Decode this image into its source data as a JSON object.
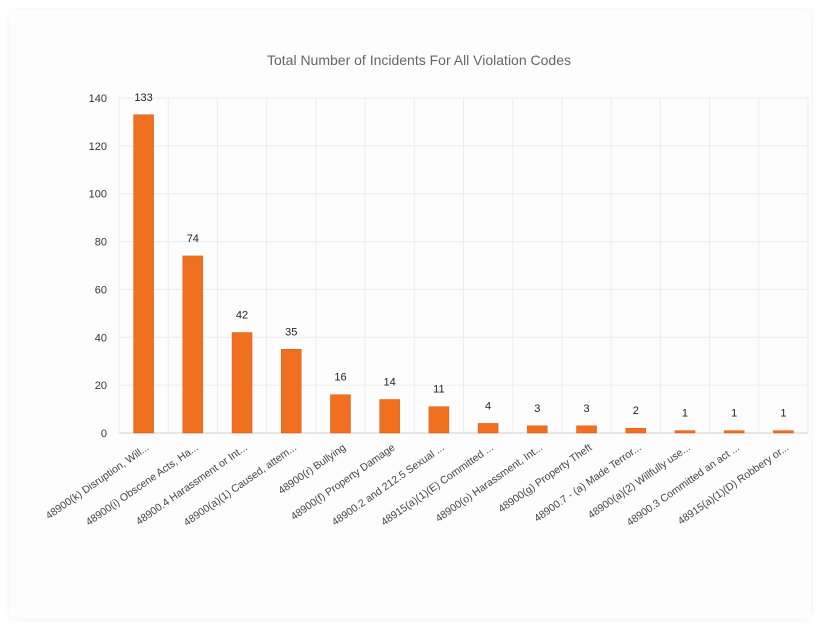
{
  "chart_data": {
    "type": "bar",
    "title": "Total Number of Incidents For All Violation Codes",
    "xlabel": "",
    "ylabel": "",
    "ylim": [
      0,
      140
    ],
    "y_ticks": [
      0,
      20,
      40,
      60,
      80,
      100,
      120,
      140
    ],
    "grid": true,
    "legend": "none",
    "bar_color": "#f07020",
    "categories": [
      "48900(k) Disruption, Will...",
      "48900(i) Obscene Acts, Ha...",
      "48900.4 Harassment or Int...",
      "48900(a)(1) Caused, attem...",
      "48900(r) Bullying",
      "48900(f) Property Damage",
      "48900.2 and 212.5 Sexual ...",
      "48915(a)(1)(E) Committed ...",
      "48900(o) Harassment, Int...",
      "48900(g) Property Theft",
      "48900.7 - (a) Made Terror...",
      "48900(a)(2) Willfully use...",
      "48900.3 Committed an act ...",
      "48915(a)(1)(D) Robbery or..."
    ],
    "values": [
      133,
      74,
      42,
      35,
      16,
      14,
      11,
      4,
      3,
      3,
      2,
      1,
      1,
      1
    ]
  }
}
